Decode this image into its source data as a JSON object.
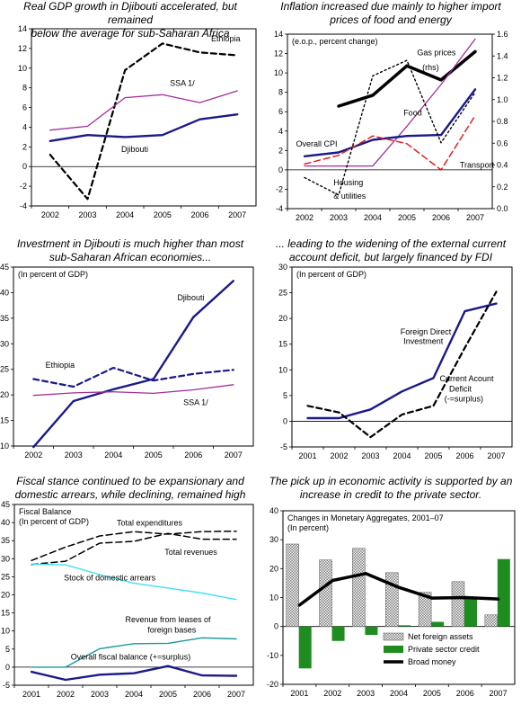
{
  "chart_data": [
    {
      "id": "gdp",
      "type": "line",
      "title": [
        "Real GDP growth in Djibouti accelerated, but remained",
        "below the average for sub-Saharan Africa"
      ],
      "categories": [
        "2002",
        "2003",
        "2004",
        "2005",
        "2006",
        "2007"
      ],
      "ylim": [
        -4,
        14
      ],
      "yticks": [
        -4,
        -2,
        0,
        2,
        4,
        6,
        8,
        10,
        12,
        14
      ],
      "grid": false,
      "series": [
        {
          "name": "Ethiopia",
          "values": [
            1.2,
            -3.3,
            9.8,
            12.5,
            11.6,
            11.3
          ],
          "color": "#000000",
          "dash": "6,4",
          "width": 2.2
        },
        {
          "name": "SSA 1/",
          "values": [
            3.7,
            4.1,
            7.0,
            7.3,
            6.5,
            7.7
          ],
          "color": "#a0309a",
          "width": 1.3
        },
        {
          "name": "Djibouti",
          "values": [
            2.6,
            3.2,
            3.0,
            3.2,
            4.8,
            5.3
          ],
          "color": "#1a1a8a",
          "width": 2.4
        }
      ],
      "annotations": [
        {
          "text": "Ethiopia",
          "x": 4.3,
          "y": 12.7
        },
        {
          "text": "SSA 1/",
          "x": 3.2,
          "y": 8.2
        },
        {
          "text": "Djibouti",
          "x": 1.9,
          "y": 1.5
        }
      ]
    },
    {
      "id": "inflation",
      "type": "line",
      "title": [
        "Inflation increased due mainly to higher import",
        "prices of food and energy"
      ],
      "categories": [
        "2002",
        "2003",
        "2004",
        "2005",
        "2006",
        "2007"
      ],
      "ylim": [
        -4,
        14
      ],
      "yticks": [
        -4,
        -2,
        0,
        2,
        4,
        6,
        8,
        10,
        12,
        14
      ],
      "y2lim": [
        0,
        1.6
      ],
      "y2ticks": [
        0,
        0.2,
        0.4,
        0.6,
        0.8,
        1.0,
        1.2,
        1.4,
        1.6
      ],
      "grid": false,
      "note": "(e.o.p., percent change)",
      "series": [
        {
          "name": "Gas prices (rhs)",
          "axis": "right",
          "values": [
            null,
            0.94,
            1.04,
            1.31,
            1.18,
            1.44
          ],
          "color": "#000000",
          "width": 3.5
        },
        {
          "name": "Food",
          "values": [
            0.4,
            0.4,
            0.4,
            4.5,
            8.8,
            13.5
          ],
          "color": "#a0309a",
          "width": 1.3
        },
        {
          "name": "Overall CPI",
          "values": [
            1.4,
            1.8,
            3.1,
            3.5,
            3.6,
            8.3
          ],
          "color": "#1a1a8a",
          "width": 2.4
        },
        {
          "name": "Transport",
          "values": [
            0.6,
            1.5,
            3.5,
            2.7,
            0.0,
            5.6
          ],
          "color": "#e02020",
          "dash": "7,4",
          "width": 1.5
        },
        {
          "name": "Housing & utilities",
          "values": [
            -0.8,
            -2.6,
            9.7,
            11.3,
            2.8,
            8.0
          ],
          "color": "#000000",
          "dash": "2,3",
          "width": 1.4
        }
      ],
      "annotations": [
        {
          "text": "Gas prices",
          "x": 3.3,
          "y": 11.8
        },
        {
          "text": "(rhs)",
          "x": 3.45,
          "y": 10.3
        },
        {
          "text": "Food",
          "x": 2.9,
          "y": 5.6
        },
        {
          "text": "Overall CPI",
          "x": -0.25,
          "y": 2.4
        },
        {
          "text": "Transport",
          "x": 4.55,
          "y": 0.2
        },
        {
          "text": "Housing",
          "x": 0.85,
          "y": -1.6
        },
        {
          "text": "& utilities",
          "x": 0.85,
          "y": -3.0
        }
      ]
    },
    {
      "id": "investment",
      "type": "line",
      "title": [
        "Investment in Djibouti is much higher than most",
        "sub-Saharan African economies..."
      ],
      "categories": [
        "2002",
        "2003",
        "2004",
        "2005",
        "2006",
        "2007"
      ],
      "ylim": [
        10,
        45
      ],
      "yticks": [
        10,
        15,
        20,
        25,
        30,
        35,
        40,
        45
      ],
      "grid": false,
      "note": "(In percent of GDP)",
      "series": [
        {
          "name": "Djibouti",
          "values": [
            9.8,
            18.8,
            21.1,
            23.1,
            35.2,
            42.3
          ],
          "color": "#1a1a8a",
          "width": 2.4
        },
        {
          "name": "Ethiopia",
          "values": [
            23.1,
            21.6,
            25.3,
            22.8,
            24.1,
            24.9
          ],
          "color": "#1a1a8a",
          "dash": "6,4",
          "width": 2.2
        },
        {
          "name": "SSA 1/",
          "values": [
            19.9,
            20.4,
            20.6,
            20.3,
            21.0,
            22.0
          ],
          "color": "#a0309a",
          "width": 1.3
        }
      ],
      "annotations": [
        {
          "text": "Djibouti",
          "x": 3.6,
          "y": 38.5
        },
        {
          "text": "Ethiopia",
          "x": 0.3,
          "y": 25.3
        },
        {
          "text": "SSA 1/",
          "x": 3.75,
          "y": 18.0
        }
      ]
    },
    {
      "id": "current-account",
      "type": "line",
      "title": [
        "... leading to the widening of the external current",
        "account deficit, but largely financed by FDI"
      ],
      "categories": [
        "2001",
        "2002",
        "2003",
        "2004",
        "2005",
        "2006",
        "2007"
      ],
      "ylim": [
        -5,
        30
      ],
      "yticks": [
        -5,
        0,
        5,
        10,
        15,
        20,
        25,
        30
      ],
      "grid": false,
      "note": "(In percent of GDP)",
      "series": [
        {
          "name": "Foreign Direct Investment",
          "values": [
            0.6,
            0.6,
            2.3,
            5.8,
            8.4,
            21.4,
            22.9
          ],
          "color": "#1a1a8a",
          "width": 2.4
        },
        {
          "name": "Current Acount Deficit (-=surplus)",
          "values": [
            3.0,
            1.7,
            -3.1,
            1.3,
            3.0,
            14.3,
            25.2
          ],
          "color": "#000000",
          "dash": "6,4",
          "width": 2.2
        }
      ],
      "annotations": [
        {
          "text": "Foreign Direct",
          "x": 2.95,
          "y": 16.9
        },
        {
          "text": "Investment",
          "x": 3.05,
          "y": 15.0
        },
        {
          "text": "Current Acount",
          "x": 4.2,
          "y": 7.8
        },
        {
          "text": "Deficit",
          "x": 4.5,
          "y": 5.8
        },
        {
          "text": "(-=surplus)",
          "x": 4.35,
          "y": 3.8
        }
      ]
    },
    {
      "id": "fiscal",
      "type": "line",
      "title": [
        "Fiscal stance continued to be expansionary and",
        "domestic arrears, while declining, remained high"
      ],
      "categories": [
        "2001",
        "2002",
        "2003",
        "2004",
        "2005",
        "2006",
        "2007"
      ],
      "ylim": [
        -5,
        45
      ],
      "yticks": [
        -5,
        0,
        5,
        10,
        15,
        20,
        25,
        30,
        35,
        40,
        45
      ],
      "grid": false,
      "note": [
        "Fiscal Balance",
        "(In percent of GDP)"
      ],
      "series": [
        {
          "name": "Total expenditures",
          "values": [
            29.5,
            33.2,
            36.3,
            37.5,
            36.8,
            37.5,
            37.6
          ],
          "color": "#000000",
          "dash": "7,4",
          "width": 1.5
        },
        {
          "name": "Total revenues",
          "values": [
            28.4,
            29.3,
            34.3,
            34.8,
            37.0,
            35.4,
            35.4
          ],
          "color": "#000000",
          "dash": "7,4",
          "width": 1.5
        },
        {
          "name": "Stock of domestic arrears",
          "values": [
            28.5,
            28.3,
            25.6,
            23.2,
            21.9,
            20.5,
            18.7
          ],
          "color": "#40e0f0",
          "width": 1.4
        },
        {
          "name": "Revenue from leases of foreign bases",
          "values": [
            0.0,
            0.0,
            5.1,
            6.5,
            6.6,
            8.1,
            7.8
          ],
          "color": "#1a9a9a",
          "width": 1.4
        },
        {
          "name": "Overall fiscal balance (+=surplus)",
          "values": [
            -1.3,
            -3.5,
            -2.1,
            -1.7,
            0.3,
            -2.3,
            -2.4
          ],
          "color": "#1a1a8a",
          "width": 2.4
        }
      ],
      "annotations": [
        {
          "text": "Total expenditures",
          "x": 2.5,
          "y": 39.2
        },
        {
          "text": "Total revenues",
          "x": 3.9,
          "y": 31.1
        },
        {
          "text": "Stock of domestic arrears",
          "x": 0.95,
          "y": 24.0
        },
        {
          "text": "Revenue from leases of",
          "x": 2.75,
          "y": 12.4
        },
        {
          "text": "foreign bases",
          "x": 3.4,
          "y": 9.6
        },
        {
          "text": "Overall fiscal balance (+=surplus)",
          "x": 1.15,
          "y": 2.1
        }
      ]
    },
    {
      "id": "monetary",
      "type": "bar",
      "title": [
        "The pick up in economic activity is supported by an",
        "increase in credit to the private sector."
      ],
      "categories": [
        "2001",
        "2002",
        "2003",
        "2004",
        "2005",
        "2006",
        "2007"
      ],
      "ylim": [
        -20,
        40
      ],
      "yticks": [
        -20,
        -10,
        0,
        10,
        20,
        30,
        40
      ],
      "grid": false,
      "note": [
        "Changes in Monetary Aggregates, 2001–07",
        "(In percent)"
      ],
      "series": [
        {
          "name": "Net foreign assets",
          "type": "bar",
          "values": [
            28.5,
            23.0,
            27.0,
            18.6,
            11.8,
            15.5,
            4.0
          ],
          "color": "#a8a8a8",
          "pattern": true
        },
        {
          "name": "Private sector credit",
          "type": "bar",
          "values": [
            -14.5,
            -5.0,
            -2.9,
            0.4,
            1.6,
            9.8,
            23.3
          ],
          "color": "#1e8c1e"
        },
        {
          "name": "Broad money",
          "type": "line",
          "values": [
            7.4,
            15.9,
            18.3,
            13.5,
            9.8,
            10.0,
            9.5
          ],
          "color": "#000000",
          "width": 3.5
        }
      ],
      "legend_position": "bottom-right"
    }
  ]
}
